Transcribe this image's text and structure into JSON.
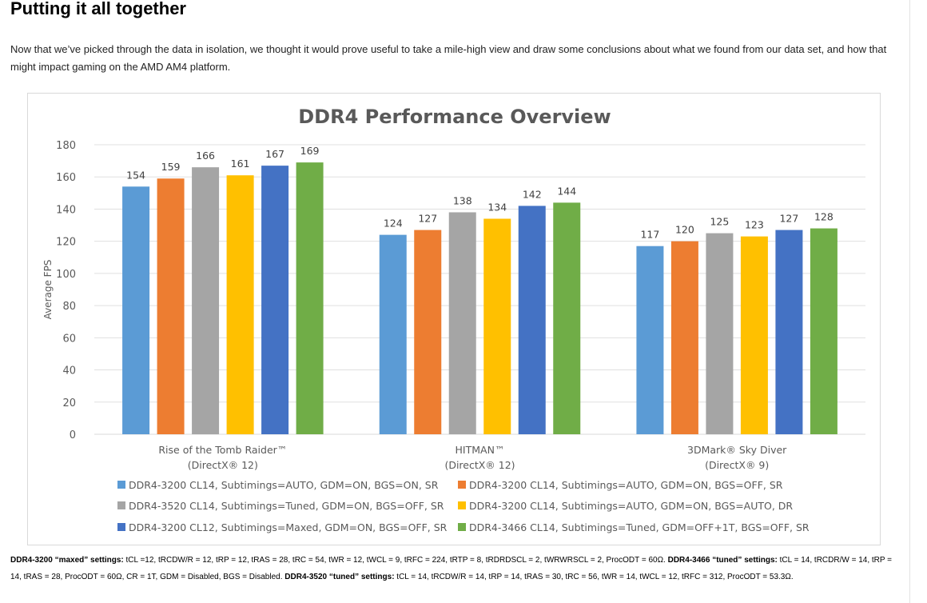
{
  "article": {
    "heading": "Putting it all together",
    "intro": "Now that we’ve picked through the data in isolation, we thought it would prove useful to take a mile-high view and draw some conclusions about what we found from our data set, and how that might impact gaming on the AMD AM4 platform."
  },
  "chart_data": {
    "type": "bar",
    "title": "DDR4 Performance Overview",
    "xlabel": "",
    "ylabel": "Average FPS",
    "ylim": [
      0,
      180
    ],
    "yticks": [
      0,
      20,
      40,
      60,
      80,
      100,
      120,
      140,
      160,
      180
    ],
    "grid": true,
    "legend_position": "bottom",
    "categories": [
      [
        "Rise of the Tomb Raider™",
        "(DirectX® 12)"
      ],
      [
        "HITMAN™",
        "(DirectX® 12)"
      ],
      [
        "3DMark® Sky Diver",
        "(DirectX® 9)"
      ]
    ],
    "series": [
      {
        "name": "DDR4-3200 CL14, Subtimings=AUTO, GDM=ON, BGS=ON, SR",
        "color": "#5b9bd5",
        "values": [
          154,
          124,
          117
        ]
      },
      {
        "name": "DDR4-3200 CL14, Subtimings=AUTO, GDM=ON, BGS=OFF, SR",
        "color": "#ed7d31",
        "values": [
          159,
          127,
          120
        ]
      },
      {
        "name": "DDR4-3520 CL14, Subtimings=Tuned, GDM=ON, BGS=OFF, SR",
        "color": "#a5a5a5",
        "values": [
          166,
          138,
          125
        ]
      },
      {
        "name": "DDR4-3200 CL14, Subtimings=AUTO, GDM=ON, BGS=AUTO, DR",
        "color": "#ffc000",
        "values": [
          161,
          134,
          123
        ]
      },
      {
        "name": "DDR4-3200 CL12, Subtimings=Maxed, GDM=ON, BGS=OFF, SR",
        "color": "#4472c4",
        "values": [
          167,
          142,
          127
        ]
      },
      {
        "name": "DDR4-3466 CL14, Subtimings=Tuned, GDM=OFF+1T, BGS=OFF, SR",
        "color": "#70ad47",
        "values": [
          169,
          144,
          128
        ]
      }
    ]
  },
  "footnote": {
    "s1_label": "DDR4-3200 “maxed” settings:",
    "s1_text": " tCL =12, tRCDW/R = 12, tRP = 12, tRAS = 28, tRC = 54, tWR = 12, tWCL = 9, tRFC = 224, tRTP = 8, tRDRDSCL = 2, tWRWRSCL = 2, ProcODT = 60Ω. ",
    "s2_label_a": "DDR4-",
    "s2_label_b": "3466 “tuned” settings:",
    "s2_text": " tCL = 14, tRCDR/W = 14, tRP = 14, tRAS = 28, ProcODT = 60Ω, CR = 1T, GDM = Disabled, BGS = Disabled. ",
    "s3_label": "DDR4-3520 “tuned” settings:",
    "s3_text": " tCL = 14, tRCDW/R = 14, tRP = 14, tRAS = 30, tRC = 56, tWR = 14, tWCL = 12, tRFC = 312, ProcODT = 53.3Ω."
  }
}
